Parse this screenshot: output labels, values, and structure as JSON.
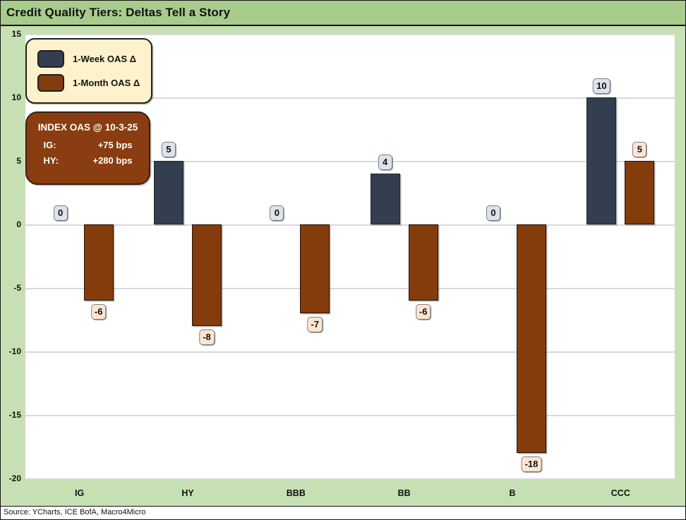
{
  "window": {
    "title": "Credit Quality Tiers: Deltas Tell a Story",
    "source": "Source: YCharts, ICE BofA, Macro4Micro"
  },
  "annotation": {
    "title": "INDEX OAS @ 10-3-25",
    "rows": [
      {
        "label": "IG:",
        "value": "+75 bps"
      },
      {
        "label": "HY:",
        "value": "+280 bps"
      }
    ]
  },
  "colors": {
    "title_bg": "#a8cc8c",
    "canvas_bg": "#c6e0b4",
    "week": "#333F50",
    "month": "#843C0C",
    "gridline": "#d9d9d9",
    "legend_bg": "#fdf2cc",
    "week_label_bg": "#dce3ec",
    "month_label_bg": "#fce6d2",
    "annotation_bg": "#8a3d10"
  },
  "chart_data": {
    "type": "bar",
    "title": "Credit Quality Tiers: Deltas Tell a Story",
    "categories": [
      "IG",
      "HY",
      "BBB",
      "BB",
      "B",
      "CCC"
    ],
    "series": [
      {
        "name": "1-Week OAS Δ",
        "color": "#333F50",
        "values": [
          0,
          5,
          0,
          4,
          0,
          10
        ]
      },
      {
        "name": "1-Month OAS Δ",
        "color": "#843C0C",
        "values": [
          -6,
          -8,
          -7,
          -6,
          -18,
          5
        ]
      }
    ],
    "xlabel": "",
    "ylabel": "",
    "ylim": [
      -20,
      15
    ],
    "yticks": [
      15,
      10,
      5,
      0,
      -5,
      -10,
      -15,
      -20
    ],
    "grid": true,
    "value_labels": true,
    "legend_position": "top-left"
  }
}
